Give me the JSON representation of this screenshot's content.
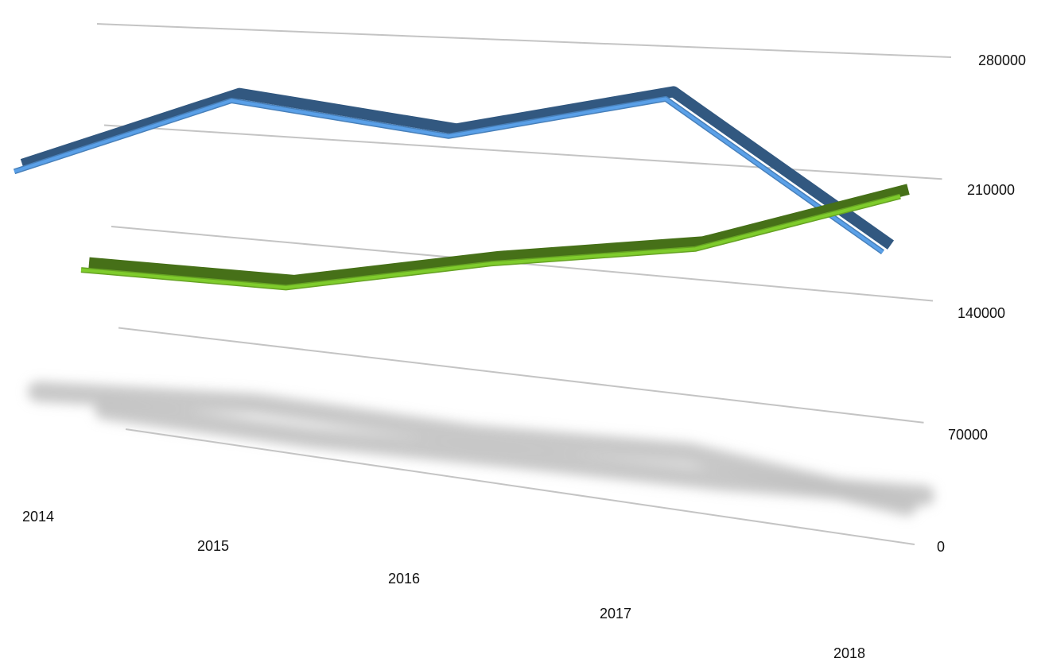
{
  "chart_data": {
    "type": "line",
    "categories": [
      "2014",
      "2015",
      "2016",
      "2017",
      "2018"
    ],
    "series": [
      {
        "color": "#5aa0e8",
        "values": [
          178000,
          235000,
          220000,
          250000,
          168000
        ]
      },
      {
        "color": "#7fcc2c",
        "values": [
          110000,
          112000,
          140000,
          160000,
          200000
        ]
      }
    ],
    "y_ticks": [
      "0",
      "70000",
      "140000",
      "210000",
      "280000"
    ],
    "ylim": [
      0,
      280000
    ],
    "grid": true,
    "legend": "none",
    "shadow_color": "#c2c2c2"
  }
}
